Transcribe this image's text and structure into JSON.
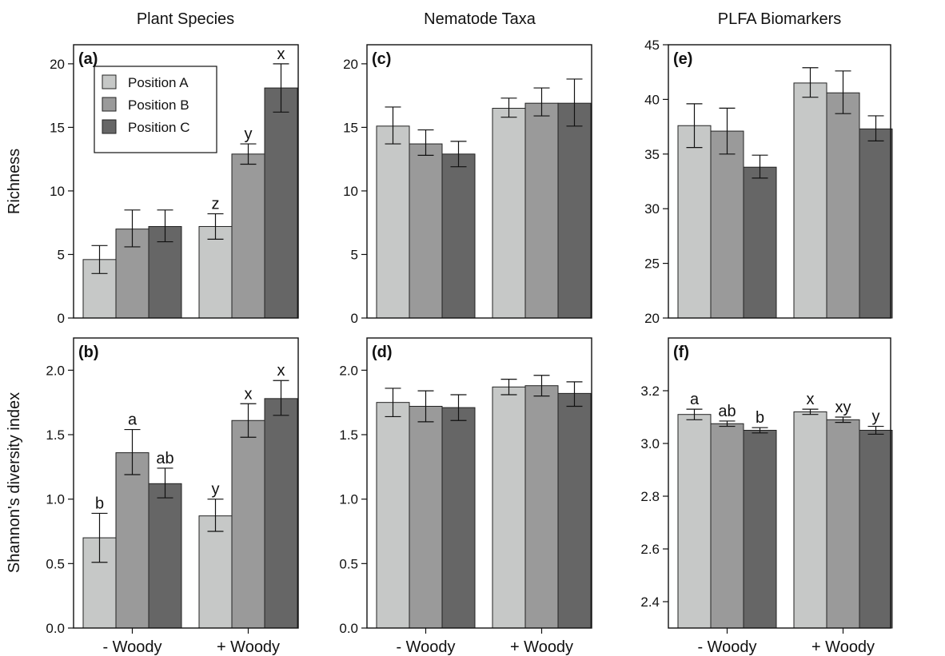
{
  "figure": {
    "column_titles": [
      "Plant Species",
      "Nematode Taxa",
      "PLFA Biomarkers"
    ],
    "row_labels": [
      "Richness",
      "Shannon's diversity index"
    ],
    "groups": [
      "- Woody",
      "+ Woody"
    ],
    "legend": [
      "Position A",
      "Position B",
      "Position C"
    ],
    "colors": {
      "Position A": "#c6c8c7",
      "Position B": "#9a9a9a",
      "Position C": "#666666"
    }
  },
  "chart_data": [
    {
      "type": "bar",
      "panel": "(a)",
      "ylabel": "Richness",
      "ylim": [
        0,
        21.5
      ],
      "yticks": [
        0,
        5,
        10,
        15,
        20
      ],
      "categories": [
        "- Woody",
        "+ Woody"
      ],
      "series": [
        {
          "name": "Position A",
          "values": [
            4.6,
            7.2
          ],
          "err_low": [
            3.5,
            6.2
          ],
          "err_high": [
            5.7,
            8.2
          ],
          "labels": [
            "",
            "z"
          ]
        },
        {
          "name": "Position B",
          "values": [
            7.0,
            12.9
          ],
          "err_low": [
            5.6,
            12.1
          ],
          "err_high": [
            8.5,
            13.7
          ],
          "labels": [
            "",
            "y"
          ]
        },
        {
          "name": "Position C",
          "values": [
            7.2,
            18.1
          ],
          "err_low": [
            6.0,
            16.2
          ],
          "err_high": [
            8.5,
            20.0
          ],
          "labels": [
            "",
            "x"
          ]
        }
      ],
      "legend_position": "top-left"
    },
    {
      "type": "bar",
      "panel": "(b)",
      "ylabel": "Shannon's diversity index",
      "ylim": [
        0,
        2.25
      ],
      "yticks": [
        "0.0",
        "0.5",
        "1.0",
        "1.5",
        "2.0"
      ],
      "categories": [
        "- Woody",
        "+ Woody"
      ],
      "series": [
        {
          "name": "Position A",
          "values": [
            0.7,
            0.87
          ],
          "err_low": [
            0.51,
            0.75
          ],
          "err_high": [
            0.89,
            1.0
          ],
          "labels": [
            "b",
            "y"
          ]
        },
        {
          "name": "Position B",
          "values": [
            1.36,
            1.61
          ],
          "err_low": [
            1.19,
            1.48
          ],
          "err_high": [
            1.54,
            1.74
          ],
          "labels": [
            "a",
            "x"
          ]
        },
        {
          "name": "Position C",
          "values": [
            1.12,
            1.78
          ],
          "err_low": [
            1.01,
            1.65
          ],
          "err_high": [
            1.24,
            1.92
          ],
          "labels": [
            "ab",
            "x"
          ]
        }
      ]
    },
    {
      "type": "bar",
      "panel": "(c)",
      "ylim": [
        0,
        21.5
      ],
      "yticks": [
        0,
        5,
        10,
        15,
        20
      ],
      "categories": [
        "- Woody",
        "+ Woody"
      ],
      "series": [
        {
          "name": "Position A",
          "values": [
            15.1,
            16.5
          ],
          "err_low": [
            13.7,
            15.8
          ],
          "err_high": [
            16.6,
            17.3
          ],
          "labels": [
            "",
            ""
          ]
        },
        {
          "name": "Position B",
          "values": [
            13.7,
            16.9
          ],
          "err_low": [
            12.8,
            15.9
          ],
          "err_high": [
            14.8,
            18.1
          ],
          "labels": [
            "",
            ""
          ]
        },
        {
          "name": "Position C",
          "values": [
            12.9,
            16.9
          ],
          "err_low": [
            11.9,
            15.1
          ],
          "err_high": [
            13.9,
            18.8
          ],
          "labels": [
            "",
            ""
          ]
        }
      ]
    },
    {
      "type": "bar",
      "panel": "(d)",
      "ylim": [
        0,
        2.25
      ],
      "yticks": [
        "0.0",
        "0.5",
        "1.0",
        "1.5",
        "2.0"
      ],
      "categories": [
        "- Woody",
        "+ Woody"
      ],
      "series": [
        {
          "name": "Position A",
          "values": [
            1.75,
            1.87
          ],
          "err_low": [
            1.64,
            1.81
          ],
          "err_high": [
            1.86,
            1.93
          ],
          "labels": [
            "",
            ""
          ]
        },
        {
          "name": "Position B",
          "values": [
            1.72,
            1.88
          ],
          "err_low": [
            1.6,
            1.8
          ],
          "err_high": [
            1.84,
            1.96
          ],
          "labels": [
            "",
            ""
          ]
        },
        {
          "name": "Position C",
          "values": [
            1.71,
            1.82
          ],
          "err_low": [
            1.61,
            1.72
          ],
          "err_high": [
            1.81,
            1.91
          ],
          "labels": [
            "",
            ""
          ]
        }
      ]
    },
    {
      "type": "bar",
      "panel": "(e)",
      "ylim": [
        20,
        45
      ],
      "yticks": [
        20,
        25,
        30,
        35,
        40,
        45
      ],
      "categories": [
        "- Woody",
        "+ Woody"
      ],
      "series": [
        {
          "name": "Position A",
          "values": [
            37.6,
            41.5
          ],
          "err_low": [
            35.6,
            40.2
          ],
          "err_high": [
            39.6,
            42.9
          ],
          "labels": [
            "",
            ""
          ]
        },
        {
          "name": "Position B",
          "values": [
            37.1,
            40.6
          ],
          "err_low": [
            35.0,
            38.7
          ],
          "err_high": [
            39.2,
            42.6
          ],
          "labels": [
            "",
            ""
          ]
        },
        {
          "name": "Position C",
          "values": [
            33.8,
            37.3
          ],
          "err_low": [
            32.8,
            36.2
          ],
          "err_high": [
            34.9,
            38.5
          ],
          "labels": [
            "",
            ""
          ]
        }
      ]
    },
    {
      "type": "bar",
      "panel": "(f)",
      "ylim": [
        2.3,
        3.4
      ],
      "yticks": [
        "2.4",
        "2.6",
        "2.8",
        "3.0",
        "3.2"
      ],
      "categories": [
        "- Woody",
        "+ Woody"
      ],
      "series": [
        {
          "name": "Position A",
          "values": [
            3.11,
            3.12
          ],
          "err_low": [
            3.09,
            3.11
          ],
          "err_high": [
            3.13,
            3.13
          ],
          "labels": [
            "a",
            "x"
          ]
        },
        {
          "name": "Position B",
          "values": [
            3.075,
            3.09
          ],
          "err_low": [
            3.065,
            3.08
          ],
          "err_high": [
            3.085,
            3.1
          ],
          "labels": [
            "ab",
            "xy"
          ]
        },
        {
          "name": "Position C",
          "values": [
            3.05,
            3.05
          ],
          "err_low": [
            3.04,
            3.035
          ],
          "err_high": [
            3.06,
            3.065
          ],
          "labels": [
            "b",
            "y"
          ]
        }
      ]
    }
  ]
}
